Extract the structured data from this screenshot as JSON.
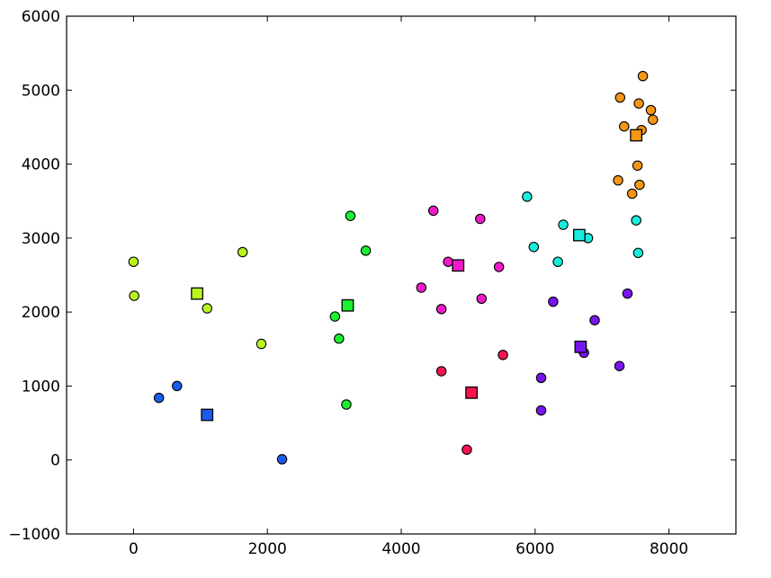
{
  "chart_data": {
    "type": "scatter",
    "title": "",
    "xlabel": "",
    "ylabel": "",
    "xlim": [
      -1000,
      9000
    ],
    "ylim": [
      -1000,
      6000
    ],
    "grid": false,
    "legend": "none",
    "x_ticks": [
      0,
      2000,
      4000,
      6000,
      8000
    ],
    "x_tick_labels": [
      "0",
      "2000",
      "4000",
      "6000",
      "8000"
    ],
    "y_ticks": [
      -1000,
      0,
      1000,
      2000,
      3000,
      4000,
      5000,
      6000
    ],
    "y_tick_labels": [
      "−1000",
      "0",
      "1000",
      "2000",
      "3000",
      "4000",
      "5000",
      "6000"
    ],
    "clusters": [
      {
        "color": "#1a5cf0",
        "centroid": [
          1100,
          610
        ],
        "points": [
          [
            380,
            840
          ],
          [
            650,
            1000
          ],
          [
            2220,
            10
          ]
        ]
      },
      {
        "color": "#b8f51f",
        "centroid": [
          950,
          2250
        ],
        "points": [
          [
            0,
            2680
          ],
          [
            10,
            2220
          ],
          [
            1100,
            2050
          ],
          [
            1630,
            2810
          ],
          [
            1910,
            1570
          ]
        ]
      },
      {
        "color": "#19f02e",
        "centroid": [
          3200,
          2090
        ],
        "points": [
          [
            3010,
            1940
          ],
          [
            3070,
            1640
          ],
          [
            3180,
            750
          ],
          [
            3240,
            3300
          ],
          [
            3470,
            2830
          ]
        ]
      },
      {
        "color": "#f51450",
        "centroid": [
          5050,
          910
        ],
        "points": [
          [
            4600,
            1200
          ],
          [
            4980,
            140
          ],
          [
            5520,
            1420
          ]
        ]
      },
      {
        "color": "#f01ac8",
        "centroid": [
          4850,
          2630
        ],
        "points": [
          [
            4300,
            2330
          ],
          [
            4480,
            3370
          ],
          [
            4600,
            2040
          ],
          [
            4700,
            2680
          ],
          [
            5180,
            3260
          ],
          [
            5200,
            2180
          ],
          [
            5460,
            2610
          ]
        ]
      },
      {
        "color": "#19ecdc",
        "centroid": [
          6660,
          3040
        ],
        "points": [
          [
            5880,
            3560
          ],
          [
            5980,
            2880
          ],
          [
            6340,
            2680
          ],
          [
            6420,
            3180
          ],
          [
            6790,
            3000
          ],
          [
            7510,
            3240
          ],
          [
            7540,
            2800
          ]
        ]
      },
      {
        "color": "#7814f0",
        "centroid": [
          6680,
          1530
        ],
        "points": [
          [
            6090,
            670
          ],
          [
            6090,
            1110
          ],
          [
            6270,
            2140
          ],
          [
            6730,
            1450
          ],
          [
            6890,
            1890
          ],
          [
            7260,
            1270
          ],
          [
            7380,
            2250
          ]
        ]
      },
      {
        "color": "#f59614",
        "centroid": [
          7510,
          4390
        ],
        "points": [
          [
            7240,
            3780
          ],
          [
            7270,
            4900
          ],
          [
            7330,
            4510
          ],
          [
            7450,
            3600
          ],
          [
            7530,
            3980
          ],
          [
            7550,
            4820
          ],
          [
            7560,
            3720
          ],
          [
            7590,
            4460
          ],
          [
            7610,
            5190
          ],
          [
            7730,
            4730
          ],
          [
            7760,
            4600
          ]
        ]
      }
    ]
  }
}
